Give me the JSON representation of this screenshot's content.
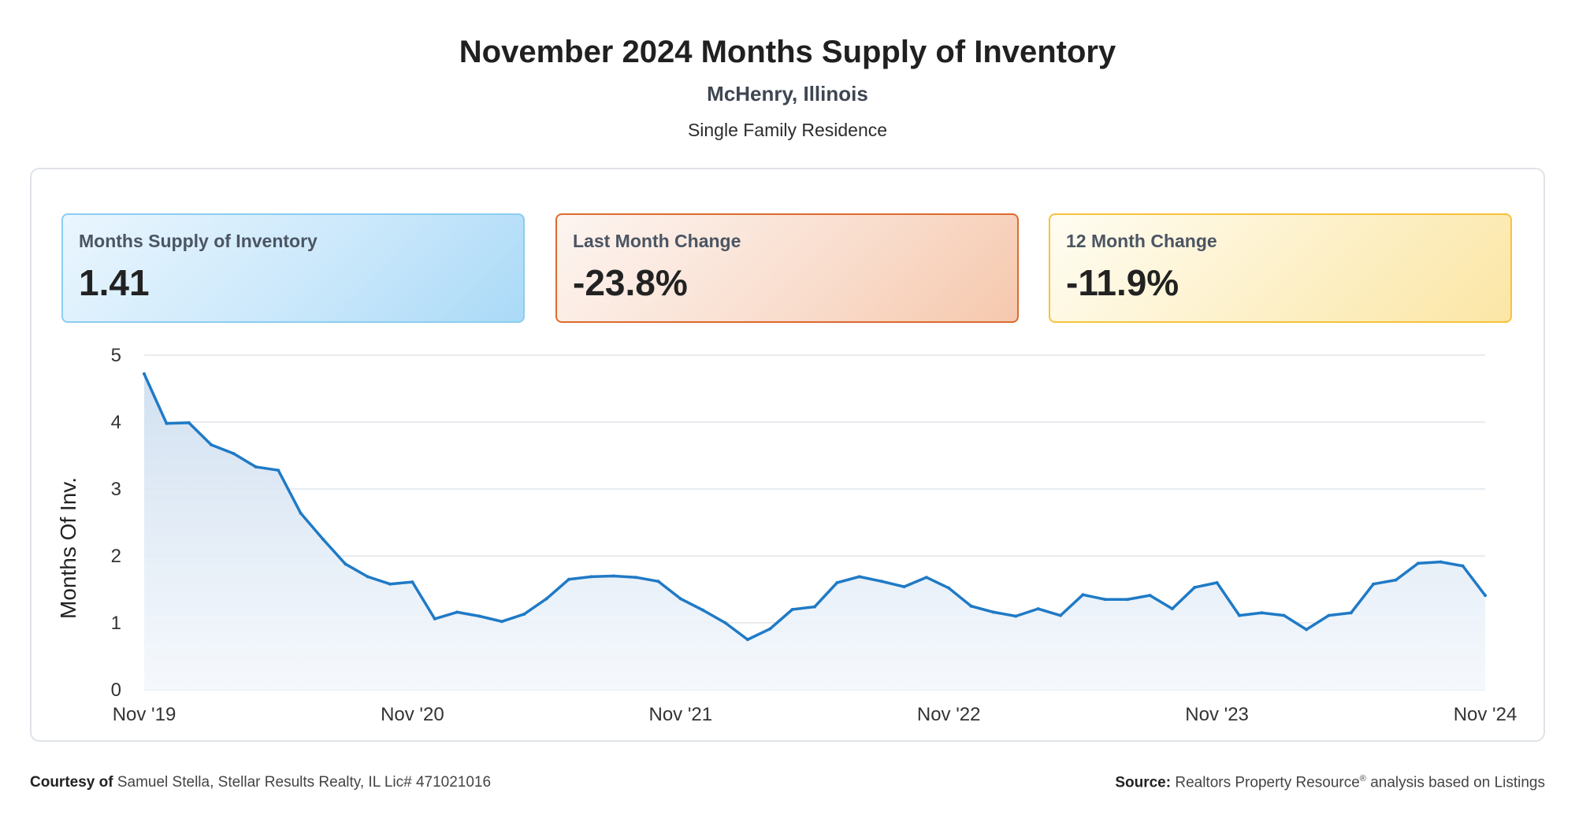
{
  "header": {
    "title": "November 2024 Months Supply of Inventory",
    "location": "McHenry, Illinois",
    "property_type": "Single Family Residence"
  },
  "cards": [
    {
      "label": "Months Supply of Inventory",
      "value": "1.41",
      "color": "#aadaf7"
    },
    {
      "label": "Last Month Change",
      "value": "-23.8%",
      "color": "#f6c8ad"
    },
    {
      "label": "12 Month Change",
      "value": "-11.9%",
      "color": "#fbe6a5"
    }
  ],
  "footer": {
    "courtesy_label": "Courtesy of",
    "courtesy_text": "Samuel Stella, Stellar Results Realty, IL Lic# 471021016",
    "source_label": "Source:",
    "source_name": "Realtors Property Resource",
    "source_mark": "®",
    "source_text": "analysis based on Listings"
  },
  "chart_data": {
    "type": "area",
    "title": "",
    "xlabel": "",
    "ylabel": "Months Of Inv.",
    "ylim": [
      0,
      5
    ],
    "yticks": [
      0,
      1,
      2,
      3,
      4,
      5
    ],
    "x_tick_labels": [
      "Nov '19",
      "Nov '20",
      "Nov '21",
      "Nov '22",
      "Nov '23",
      "Nov '24"
    ],
    "grid": true,
    "line_color": "#1f7ac6",
    "fill_color": "#dbe8f5",
    "series": [
      {
        "values": [
          4.72,
          3.98,
          3.99,
          3.66,
          3.53,
          3.33,
          3.28,
          2.64,
          2.25,
          1.88,
          1.69,
          1.58,
          1.61,
          1.06,
          1.16,
          1.1,
          1.02,
          1.13,
          1.36,
          1.65,
          1.69,
          1.7,
          1.68,
          1.62,
          1.36,
          1.19,
          1.0,
          0.75,
          0.91,
          1.2,
          1.24,
          1.6,
          1.69,
          1.62,
          1.54,
          1.68,
          1.52,
          1.25,
          1.16,
          1.1,
          1.21,
          1.11,
          1.42,
          1.35,
          1.35,
          1.41,
          1.21,
          1.53,
          1.6,
          1.11,
          1.15,
          1.11,
          0.9,
          1.11,
          1.15,
          1.58,
          1.64,
          1.89,
          1.91,
          1.85,
          1.41
        ]
      }
    ]
  }
}
